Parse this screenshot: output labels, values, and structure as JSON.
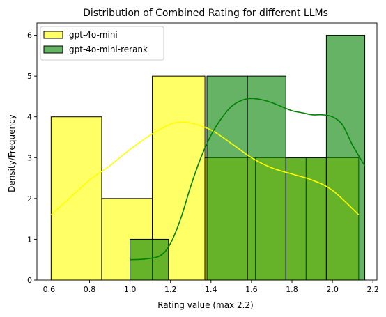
{
  "chart_data": {
    "type": "histogram",
    "title": "Distribution of Combined Rating for different LLMs",
    "xlabel": "Rating value (max 2.2)",
    "ylabel": "Density/Frequency",
    "xlim": [
      0.54,
      2.22
    ],
    "ylim": [
      0,
      6.3
    ],
    "xticks": [
      "0.6",
      "0.8",
      "1.0",
      "1.2",
      "1.4",
      "1.6",
      "1.8",
      "2.0",
      "2.2"
    ],
    "yticks": [
      "0",
      "1",
      "2",
      "3",
      "4",
      "5",
      "6"
    ],
    "legend_position": "upper-left",
    "series": [
      {
        "name": "gpt-4o-mini",
        "color": "#ffff00",
        "bins": [
          {
            "x0": 0.61,
            "x1": 0.86,
            "count": 4
          },
          {
            "x0": 0.86,
            "x1": 1.11,
            "count": 2
          },
          {
            "x0": 1.11,
            "x1": 1.37,
            "count": 5
          },
          {
            "x0": 1.37,
            "x1": 1.62,
            "count": 3
          },
          {
            "x0": 1.62,
            "x1": 1.87,
            "count": 3
          },
          {
            "x0": 1.87,
            "x1": 2.13,
            "count": 3
          }
        ],
        "kde": {
          "x": [
            0.61,
            0.7,
            0.8,
            0.9,
            1.0,
            1.1,
            1.2,
            1.25,
            1.3,
            1.4,
            1.5,
            1.6,
            1.7,
            1.8,
            1.9,
            2.0,
            2.13
          ],
          "y": [
            1.6,
            2.0,
            2.45,
            2.8,
            3.2,
            3.55,
            3.82,
            3.87,
            3.85,
            3.68,
            3.35,
            3.0,
            2.75,
            2.6,
            2.45,
            2.2,
            1.6
          ]
        }
      },
      {
        "name": "gpt-4o-mini-rerank",
        "color": "#008000",
        "bins": [
          {
            "x0": 1.0,
            "x1": 1.19,
            "count": 1
          },
          {
            "x0": 1.38,
            "x1": 1.58,
            "count": 5
          },
          {
            "x0": 1.58,
            "x1": 1.77,
            "count": 5
          },
          {
            "x0": 1.77,
            "x1": 1.97,
            "count": 3
          },
          {
            "x0": 1.97,
            "x1": 2.16,
            "count": 6
          }
        ],
        "kde": {
          "x": [
            1.0,
            1.08,
            1.15,
            1.2,
            1.25,
            1.3,
            1.35,
            1.4,
            1.45,
            1.5,
            1.55,
            1.6,
            1.65,
            1.7,
            1.75,
            1.8,
            1.85,
            1.9,
            1.95,
            2.0,
            2.05,
            2.1,
            2.16
          ],
          "y": [
            0.5,
            0.52,
            0.6,
            0.9,
            1.5,
            2.3,
            3.0,
            3.55,
            3.95,
            4.25,
            4.4,
            4.45,
            4.42,
            4.35,
            4.25,
            4.15,
            4.1,
            4.05,
            4.05,
            4.0,
            3.8,
            3.3,
            2.8
          ]
        }
      }
    ]
  }
}
